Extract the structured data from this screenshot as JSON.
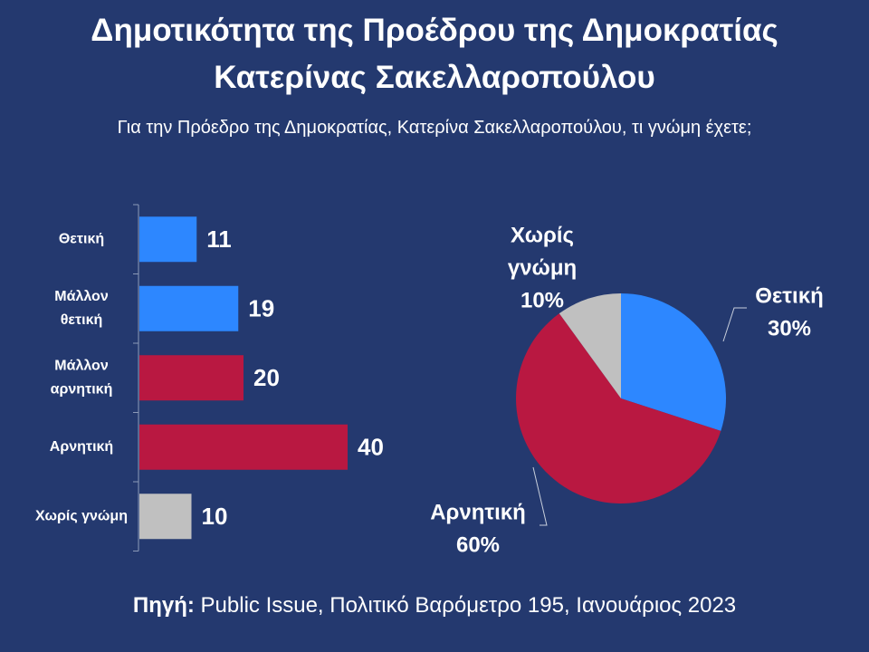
{
  "header": {
    "title_line1": "Δημοτικότητα της Προέδρου της Δημοκρατίας",
    "title_line2": "Κατερίνας Σακελλαροπούλου",
    "subtitle": "Για την Πρόεδρο της Δημοκρατίας, Κατερίνα Σακελλαροπούλου, τι γνώμη έχετε;"
  },
  "footer": {
    "source_label": "Πηγή:",
    "source_text": " Public Issue, Πολιτικό Βαρόμετρο 195, Ιανουάριος 2023"
  },
  "colors": {
    "positive": "#2d87ff",
    "negative": "#b91841",
    "neutral": "#c0c0c0",
    "background": "#24396f"
  },
  "chart_data": [
    {
      "type": "bar",
      "orientation": "horizontal",
      "categories": [
        [
          "Θετική"
        ],
        [
          "Μάλλον",
          "θετική"
        ],
        [
          "Μάλλον",
          "αρνητική"
        ],
        [
          "Αρνητική"
        ],
        [
          "Χωρίς γνώμη"
        ]
      ],
      "values": [
        11,
        19,
        20,
        40,
        10
      ],
      "value_labels": [
        "11",
        "19",
        "20",
        "40",
        "10"
      ],
      "color_keys": [
        "positive",
        "positive",
        "negative",
        "negative",
        "neutral"
      ],
      "xlim": [
        0,
        42
      ]
    },
    {
      "type": "pie",
      "slices": [
        {
          "label": [
            "Θετική"
          ],
          "value": 30,
          "pct_label": "30%",
          "color_key": "positive"
        },
        {
          "label": [
            "Αρνητική"
          ],
          "value": 60,
          "pct_label": "60%",
          "color_key": "negative"
        },
        {
          "label": [
            "Χωρίς",
            "γνώμη"
          ],
          "value": 10,
          "pct_label": "10%",
          "color_key": "neutral"
        }
      ]
    }
  ]
}
